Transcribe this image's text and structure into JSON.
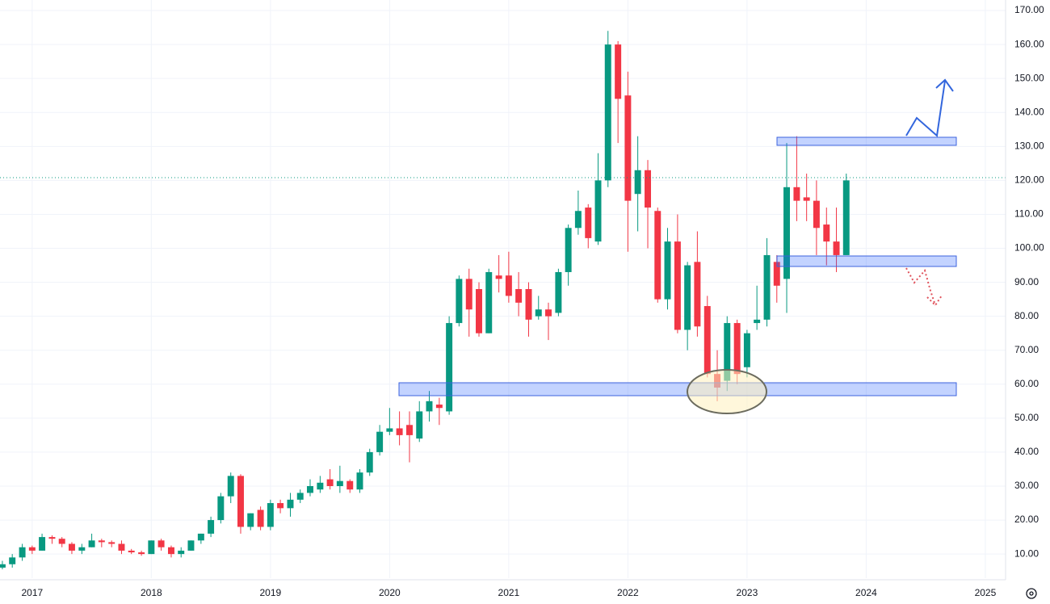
{
  "chart_data": {
    "type": "candlestick",
    "x": [
      2016.75,
      2016.833,
      2016.917,
      2017.0,
      2017.083,
      2017.167,
      2017.25,
      2017.333,
      2017.417,
      2017.5,
      2017.583,
      2017.667,
      2017.75,
      2017.833,
      2017.917,
      2018.0,
      2018.083,
      2018.167,
      2018.25,
      2018.333,
      2018.417,
      2018.5,
      2018.583,
      2018.667,
      2018.75,
      2018.833,
      2018.917,
      2019.0,
      2019.083,
      2019.167,
      2019.25,
      2019.333,
      2019.417,
      2019.5,
      2019.583,
      2019.667,
      2019.75,
      2019.833,
      2019.917,
      2020.0,
      2020.083,
      2020.167,
      2020.25,
      2020.333,
      2020.417,
      2020.5,
      2020.583,
      2020.667,
      2020.75,
      2020.833,
      2020.917,
      2021.0,
      2021.083,
      2021.167,
      2021.25,
      2021.333,
      2021.417,
      2021.5,
      2021.583,
      2021.667,
      2021.75,
      2021.833,
      2021.917,
      2022.0,
      2022.083,
      2022.167,
      2022.25,
      2022.333,
      2022.417,
      2022.5,
      2022.583,
      2022.667,
      2022.75,
      2022.833,
      2022.917,
      2023.0,
      2023.083,
      2023.167,
      2023.25,
      2023.333,
      2023.417,
      2023.5,
      2023.583,
      2023.667,
      2023.75,
      2023.833
    ],
    "open": [
      6,
      7,
      9,
      12,
      11,
      15,
      14.5,
      13,
      11,
      12,
      14,
      13.5,
      13,
      11,
      10.5,
      10,
      14,
      12,
      10,
      11,
      14,
      16,
      20,
      27,
      33,
      18,
      23,
      18,
      25,
      23.5,
      26,
      28,
      29,
      32,
      30,
      31.5,
      29,
      34,
      40,
      46,
      47,
      48,
      44,
      52,
      54,
      52,
      78,
      91,
      88,
      75,
      92,
      92,
      88,
      88,
      80,
      82,
      81,
      93,
      106,
      112,
      102,
      120,
      160,
      145,
      116,
      123,
      111,
      85,
      102,
      76,
      96,
      83,
      63,
      61,
      78,
      65,
      78,
      79,
      96,
      91,
      118,
      115,
      114,
      107,
      102,
      98
    ],
    "high": [
      8,
      10,
      13,
      12.5,
      16,
      15.5,
      15,
      13.5,
      13,
      16,
      14.5,
      14,
      14,
      11.5,
      11,
      14,
      14.5,
      12.5,
      12,
      14,
      16,
      21,
      28,
      34,
      33.5,
      22,
      24,
      26,
      26,
      28,
      29,
      32,
      33,
      35,
      36,
      32,
      35,
      41,
      48,
      53,
      52,
      52,
      55,
      58,
      56,
      80,
      92,
      94,
      90,
      94,
      98,
      99,
      93,
      90,
      86,
      84,
      94,
      107,
      117,
      113,
      128,
      164,
      161,
      152,
      133,
      126,
      112,
      106,
      110,
      96,
      105,
      86,
      70,
      80,
      79,
      76,
      89,
      103,
      98,
      131,
      133,
      122,
      120,
      112,
      112,
      122
    ],
    "low": [
      5.5,
      6,
      8,
      10,
      11,
      13,
      12,
      10,
      10,
      12,
      12,
      12,
      10,
      10,
      9.5,
      10,
      11,
      9,
      9,
      11,
      13,
      15,
      19,
      25,
      16,
      17,
      17,
      17,
      22,
      21,
      25,
      27,
      28,
      29,
      28,
      28,
      28,
      33,
      39,
      45,
      42,
      37,
      43,
      49,
      48,
      51,
      77,
      74,
      74,
      75,
      87,
      84,
      80,
      74,
      79,
      73,
      80,
      89,
      104,
      100,
      101,
      118,
      131,
      99,
      105,
      100,
      84,
      82,
      75,
      70,
      74,
      62,
      55,
      58,
      60,
      62,
      76,
      77,
      84,
      81,
      108,
      108,
      98,
      95,
      93,
      98
    ],
    "close": [
      7,
      9,
      12,
      11,
      15,
      14.5,
      13,
      11,
      12,
      14,
      13.5,
      13,
      11,
      10.5,
      10,
      14,
      12,
      10,
      11,
      14,
      16,
      20,
      27,
      33,
      18,
      22,
      18,
      25,
      23.5,
      26,
      28,
      30,
      31,
      30,
      31.5,
      29,
      34,
      40,
      46,
      47,
      45,
      45,
      52,
      55,
      53,
      78,
      91,
      82,
      75,
      93,
      91,
      86,
      84,
      79,
      82,
      80,
      93,
      106,
      111,
      103,
      120,
      160,
      144,
      114,
      123,
      112,
      85,
      102,
      76,
      95,
      77,
      63,
      59,
      78,
      63,
      75,
      79,
      98,
      89,
      118,
      114,
      114,
      106,
      102,
      98,
      120
    ],
    "up_color": "#089981",
    "down_color": "#f23645",
    "xlim": [
      2016.73,
      2025.17
    ],
    "xticks": [
      2017,
      2018,
      2019,
      2020,
      2021,
      2022,
      2023,
      2024,
      2025
    ],
    "ylim": [
      2.9,
      173.1
    ],
    "yticks": [
      {
        "value": 10,
        "label": "10.00"
      },
      {
        "value": 20,
        "label": "20.00"
      },
      {
        "value": 30,
        "label": "30.00"
      },
      {
        "value": 40,
        "label": "40.00"
      },
      {
        "value": 50,
        "label": "50.00"
      },
      {
        "value": 60,
        "label": "60.00"
      },
      {
        "value": 70,
        "label": "70.00"
      },
      {
        "value": 80,
        "label": "80.00"
      },
      {
        "value": 90,
        "label": "90.00"
      },
      {
        "value": 100,
        "label": "100.00"
      },
      {
        "value": 110,
        "label": "110.00"
      },
      {
        "value": 120,
        "label": "120.00"
      },
      {
        "value": 130,
        "label": "130.00"
      },
      {
        "value": 140,
        "label": "140.00"
      },
      {
        "value": 150,
        "label": "150.00"
      },
      {
        "value": 160,
        "label": "160.00"
      },
      {
        "value": 170,
        "label": "170.00"
      }
    ],
    "grid": true
  }
}
